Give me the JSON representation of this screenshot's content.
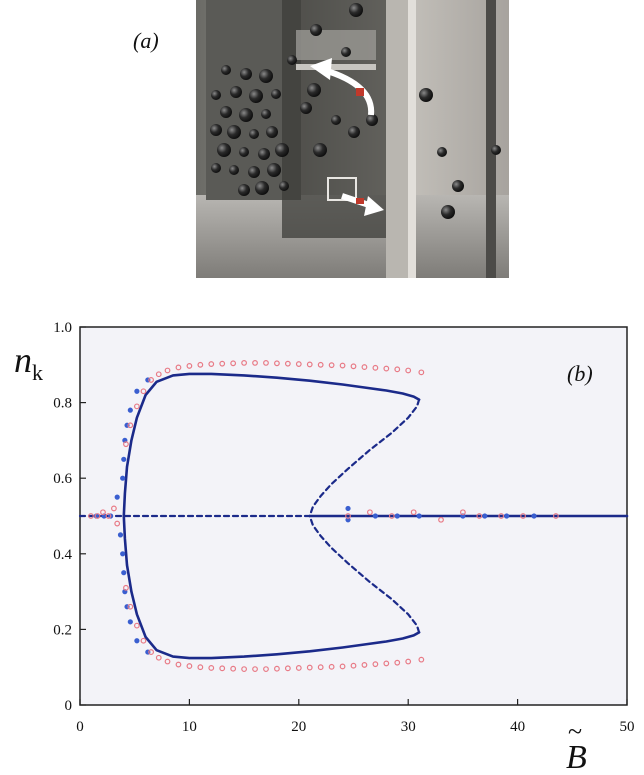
{
  "panels": {
    "a_label": "(a)",
    "b_label": "(b)"
  },
  "photo": {
    "subject": "laboratory photograph of beads in a two-compartment container with a slit and arrows"
  },
  "colors": {
    "stable_branch": "#1b2a8a",
    "unstable_branch": "#1b2a8a",
    "sim_blue": "#3a5fd0",
    "sim_pink": "#e87a86",
    "plot_background": "#f3f3f8"
  },
  "chart_data": {
    "type": "scatter",
    "title": "",
    "xlabel": "B̃",
    "ylabel": "nk",
    "xlim": [
      0,
      50
    ],
    "ylim": [
      0,
      1.0
    ],
    "xticks": [
      0,
      10,
      20,
      30,
      40,
      50
    ],
    "yticks": [
      0,
      0.2,
      0.4,
      0.6,
      0.8,
      1.0
    ],
    "ytick_labels": [
      "0",
      "0.2",
      "0.4",
      "0.6",
      "0.8",
      "1.0"
    ],
    "grid": false,
    "series": [
      {
        "kind": "stable-upper",
        "style": "solid",
        "x": [
          4.0,
          4.1,
          4.3,
          4.7,
          5.2,
          6.0,
          7.0,
          8.5,
          10,
          12,
          15,
          18,
          21,
          24,
          26,
          28,
          29.5,
          30.5,
          31.0
        ],
        "y": [
          0.5,
          0.56,
          0.63,
          0.7,
          0.76,
          0.82,
          0.855,
          0.872,
          0.876,
          0.876,
          0.872,
          0.866,
          0.858,
          0.848,
          0.84,
          0.832,
          0.824,
          0.816,
          0.808
        ]
      },
      {
        "kind": "stable-lower",
        "style": "solid",
        "x": [
          4.0,
          4.1,
          4.3,
          4.7,
          5.2,
          6.0,
          7.0,
          8.5,
          10,
          12,
          15,
          18,
          21,
          24,
          26,
          28,
          29.5,
          30.5,
          31.0
        ],
        "y": [
          0.5,
          0.44,
          0.37,
          0.3,
          0.24,
          0.18,
          0.145,
          0.128,
          0.124,
          0.124,
          0.128,
          0.134,
          0.142,
          0.152,
          0.16,
          0.168,
          0.176,
          0.184,
          0.192
        ]
      },
      {
        "kind": "unstable-upper",
        "style": "dashed",
        "x": [
          31.0,
          30.8,
          30.0,
          28.5,
          26.5,
          24.5,
          23.0,
          22.0,
          21.3,
          21.0
        ],
        "y": [
          0.808,
          0.79,
          0.76,
          0.72,
          0.675,
          0.625,
          0.585,
          0.553,
          0.525,
          0.5
        ]
      },
      {
        "kind": "unstable-lower",
        "style": "dashed",
        "x": [
          31.0,
          30.8,
          30.0,
          28.5,
          26.5,
          24.5,
          23.0,
          22.0,
          21.3,
          21.0
        ],
        "y": [
          0.192,
          0.21,
          0.24,
          0.28,
          0.325,
          0.375,
          0.415,
          0.447,
          0.475,
          0.5
        ]
      },
      {
        "kind": "symmetric-unstable",
        "style": "dashed",
        "x": [
          0,
          21
        ],
        "y": [
          0.5,
          0.5
        ]
      },
      {
        "kind": "symmetric-stable",
        "style": "solid",
        "x": [
          21,
          50
        ],
        "y": [
          0.5,
          0.5
        ]
      },
      {
        "kind": "simulation-blue",
        "style": "markers",
        "x": [
          1.5,
          2.2,
          2.8,
          3.4,
          3.7,
          3.9,
          3.9,
          4.0,
          4.0,
          4.1,
          4.1,
          4.3,
          4.3,
          4.6,
          4.6,
          5.2,
          5.2,
          6.2,
          6.2,
          24.5,
          24.5,
          27,
          29,
          31,
          35,
          37,
          39,
          41.5
        ],
        "y": [
          0.5,
          0.5,
          0.5,
          0.55,
          0.45,
          0.6,
          0.4,
          0.65,
          0.35,
          0.7,
          0.3,
          0.74,
          0.26,
          0.78,
          0.22,
          0.83,
          0.17,
          0.86,
          0.14,
          0.52,
          0.49,
          0.5,
          0.5,
          0.5,
          0.5,
          0.5,
          0.5,
          0.5
        ]
      },
      {
        "kind": "simulation-pink",
        "style": "markers",
        "x": [
          1.0,
          1.6,
          2.1,
          2.6,
          3.1,
          3.4,
          4.2,
          4.2,
          4.6,
          4.6,
          5.2,
          5.2,
          5.8,
          5.8,
          6.5,
          6.5,
          7.2,
          7.2,
          8.0,
          8.0,
          9.0,
          9.0,
          10,
          10,
          11,
          11,
          12,
          12,
          13,
          13,
          14,
          14,
          15,
          15,
          16,
          16,
          17,
          17,
          18,
          18,
          19,
          19,
          20,
          20,
          21,
          21,
          22,
          22,
          23,
          23,
          24,
          24,
          25,
          25,
          26,
          26,
          27,
          27,
          28,
          28,
          29,
          29,
          30,
          30,
          31.2,
          31.2,
          24.5,
          26.5,
          28.5,
          30.5,
          33,
          35,
          36.5,
          38.5,
          40.5,
          43.5
        ],
        "y": [
          0.5,
          0.5,
          0.51,
          0.5,
          0.52,
          0.48,
          0.69,
          0.31,
          0.74,
          0.26,
          0.79,
          0.21,
          0.83,
          0.17,
          0.86,
          0.14,
          0.875,
          0.125,
          0.885,
          0.115,
          0.893,
          0.107,
          0.897,
          0.103,
          0.9,
          0.1,
          0.902,
          0.098,
          0.903,
          0.097,
          0.904,
          0.096,
          0.905,
          0.095,
          0.905,
          0.095,
          0.905,
          0.095,
          0.904,
          0.096,
          0.903,
          0.097,
          0.902,
          0.098,
          0.901,
          0.099,
          0.9,
          0.1,
          0.899,
          0.101,
          0.898,
          0.102,
          0.896,
          0.104,
          0.894,
          0.106,
          0.892,
          0.108,
          0.89,
          0.11,
          0.888,
          0.112,
          0.885,
          0.115,
          0.88,
          0.12,
          0.5,
          0.51,
          0.5,
          0.51,
          0.49,
          0.51,
          0.5,
          0.5,
          0.5,
          0.5
        ]
      }
    ]
  }
}
